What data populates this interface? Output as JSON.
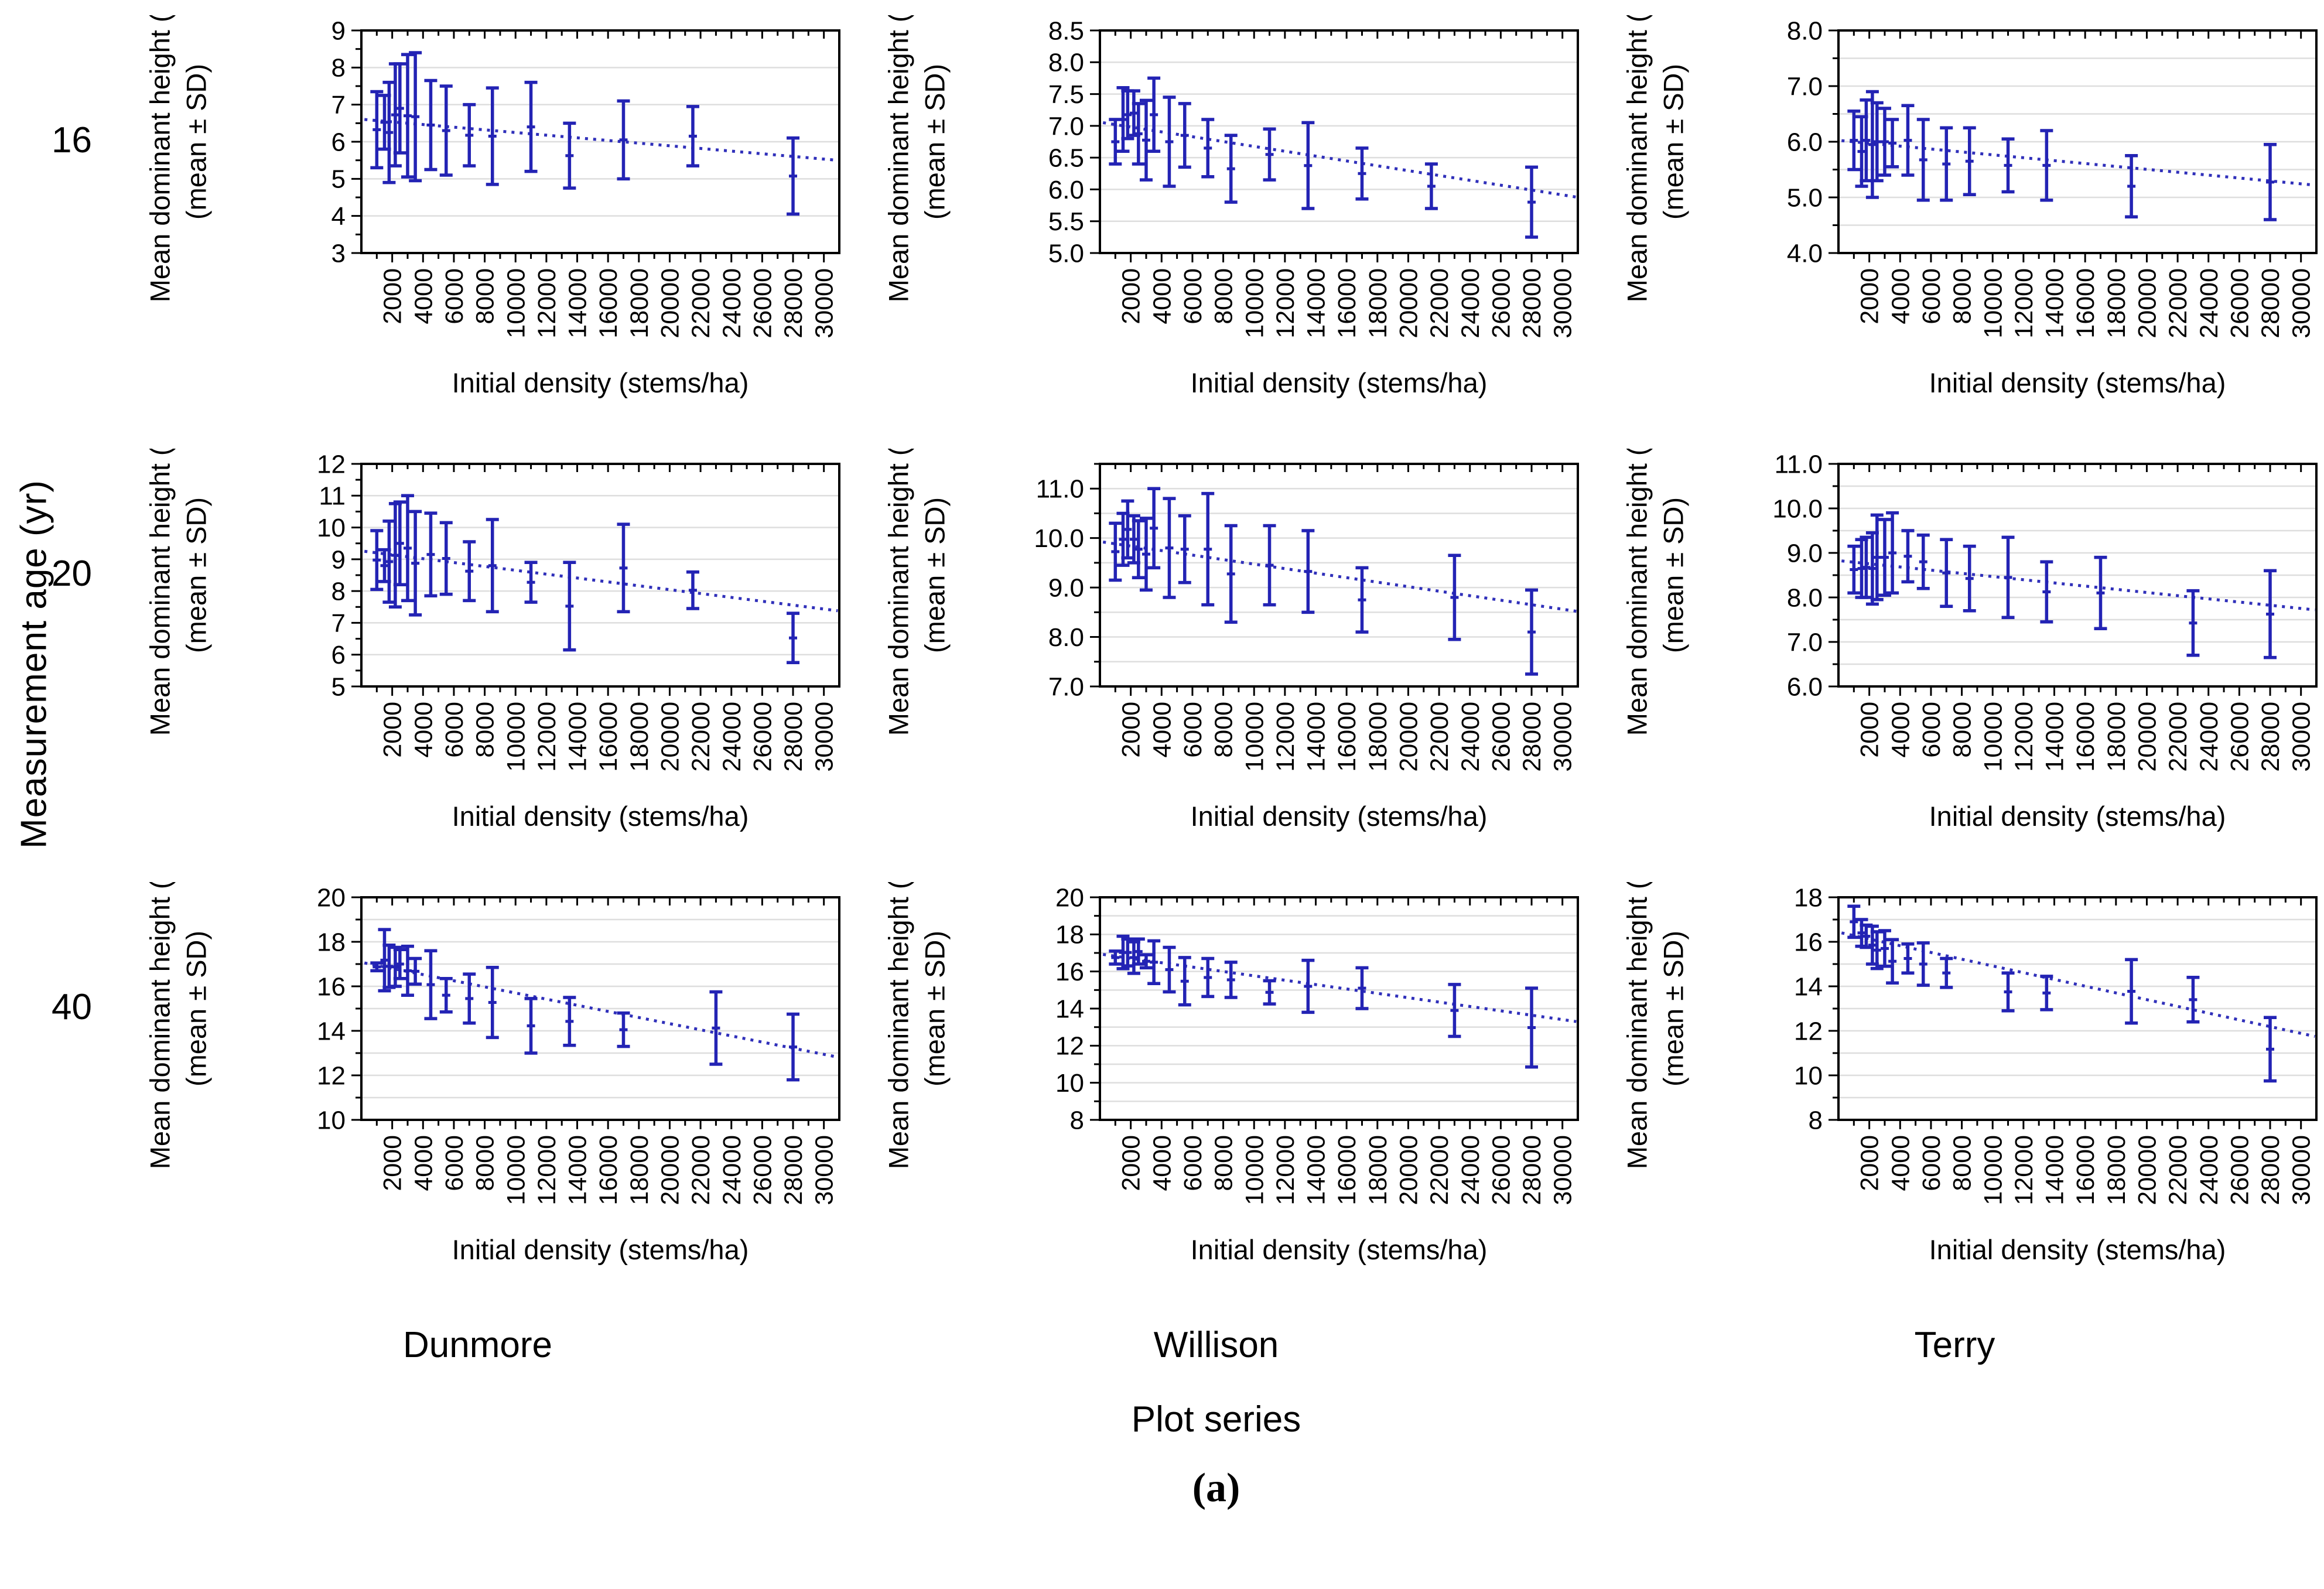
{
  "figure": {
    "row_axis_title": "Measurement age (yr)",
    "row_labels": [
      "16",
      "20",
      "40"
    ],
    "col_labels": [
      "Dunmore",
      "Willison",
      "Terry"
    ],
    "col_axis_title": "Plot series",
    "caption": "(a)",
    "x_axis_title": "Initial density (stems/ha)",
    "y_axis_title_line1": "Mean dominant height (m)",
    "y_axis_title_line2": "(mean ± SD)",
    "x_tick_labels": [
      2000,
      4000,
      6000,
      8000,
      10000,
      12000,
      14000,
      16000,
      18000,
      20000,
      22000,
      24000,
      26000,
      28000,
      30000
    ],
    "colors": {
      "bar": "#2323b4",
      "trend": "#3030ba",
      "grid": "#dedede",
      "axis": "#000000",
      "background": "#ffffff"
    }
  },
  "chart_data": [
    {
      "type": "errorbar",
      "site": "Dunmore",
      "age": 16,
      "xlabel": "Initial density (stems/ha)",
      "ylabel_line1": "Mean dominant height (m)",
      "ylabel_line2": "(mean ± SD)",
      "xlim": [
        0,
        31000
      ],
      "ylim": [
        3,
        9
      ],
      "yticks": [
        3,
        4,
        5,
        6,
        7,
        8,
        9
      ],
      "ytick_format": "0",
      "grid": [
        4,
        8,
        1
      ],
      "trend": {
        "x": [
          200,
          30900
        ],
        "y": [
          6.6,
          5.5
        ]
      },
      "points": [
        [
          1000,
          5.3,
          7.35
        ],
        [
          1500,
          5.8,
          7.25
        ],
        [
          1800,
          4.9,
          7.6
        ],
        [
          2200,
          5.35,
          8.1
        ],
        [
          2500,
          5.7,
          8.1
        ],
        [
          3000,
          5.05,
          8.35
        ],
        [
          3500,
          4.95,
          8.4
        ],
        [
          4500,
          5.25,
          7.65
        ],
        [
          5500,
          5.1,
          7.5
        ],
        [
          7000,
          5.35,
          7.0
        ],
        [
          8500,
          4.85,
          7.45
        ],
        [
          11000,
          5.2,
          7.6
        ],
        [
          13500,
          4.75,
          6.5
        ],
        [
          17000,
          5.0,
          7.1
        ],
        [
          21500,
          5.35,
          6.95
        ],
        [
          28000,
          4.05,
          6.1
        ]
      ]
    },
    {
      "type": "errorbar",
      "site": "Willison",
      "age": 16,
      "xlabel": "Initial density (stems/ha)",
      "ylabel_line1": "Mean dominant height (m)",
      "ylabel_line2": "(mean ± SD)",
      "xlim": [
        0,
        31000
      ],
      "ylim": [
        5.0,
        8.5
      ],
      "yticks": [
        5.0,
        5.5,
        6.0,
        6.5,
        7.0,
        7.5,
        8.0,
        8.5
      ],
      "ytick_format": "1",
      "grid": [
        5.5,
        8.0,
        0.5
      ],
      "trend": {
        "x": [
          200,
          30900
        ],
        "y": [
          7.05,
          5.88
        ]
      },
      "points": [
        [
          1000,
          6.4,
          7.1
        ],
        [
          1500,
          6.6,
          7.6
        ],
        [
          1800,
          6.8,
          7.55
        ],
        [
          2200,
          6.85,
          7.55
        ],
        [
          2500,
          6.4,
          7.35
        ],
        [
          3000,
          6.15,
          7.4
        ],
        [
          3500,
          6.6,
          7.75
        ],
        [
          4500,
          6.05,
          7.45
        ],
        [
          5500,
          6.35,
          7.35
        ],
        [
          7000,
          6.2,
          7.1
        ],
        [
          8500,
          5.8,
          6.85
        ],
        [
          11000,
          6.15,
          6.95
        ],
        [
          13500,
          5.7,
          7.05
        ],
        [
          17000,
          5.85,
          6.65
        ],
        [
          21500,
          5.7,
          6.4
        ],
        [
          28000,
          5.25,
          6.35
        ]
      ]
    },
    {
      "type": "errorbar",
      "site": "Terry",
      "age": 16,
      "xlabel": "Initial density (stems/ha)",
      "ylabel_line1": "Mean dominant height (m)",
      "ylabel_line2": "(mean ± SD)",
      "xlim": [
        0,
        31000
      ],
      "ylim": [
        4.0,
        8.0
      ],
      "yticks": [
        4.0,
        5.0,
        6.0,
        7.0,
        8.0
      ],
      "ytick_format": "1",
      "grid": [
        4.5,
        7.5,
        0.5
      ],
      "trend": {
        "x": [
          200,
          30900
        ],
        "y": [
          6.02,
          5.22
        ]
      },
      "points": [
        [
          1000,
          5.5,
          6.55
        ],
        [
          1500,
          5.2,
          6.45
        ],
        [
          1800,
          5.3,
          6.75
        ],
        [
          2200,
          5.0,
          6.9
        ],
        [
          2500,
          5.3,
          6.7
        ],
        [
          3000,
          5.4,
          6.6
        ],
        [
          3500,
          5.55,
          6.4
        ],
        [
          4500,
          5.4,
          6.65
        ],
        [
          5500,
          4.95,
          6.4
        ],
        [
          7000,
          4.95,
          6.25
        ],
        [
          8500,
          5.05,
          6.25
        ],
        [
          11000,
          5.1,
          6.05
        ],
        [
          13500,
          4.95,
          6.2
        ],
        [
          19000,
          4.65,
          5.75
        ],
        [
          28000,
          4.6,
          5.95
        ]
      ]
    },
    {
      "type": "errorbar",
      "site": "Dunmore",
      "age": 20,
      "xlabel": "Initial density (stems/ha)",
      "ylabel_line1": "Mean dominant height (m)",
      "ylabel_line2": "(mean ± SD)",
      "xlim": [
        0,
        31000
      ],
      "ylim": [
        5,
        12
      ],
      "yticks": [
        5,
        6,
        7,
        8,
        9,
        10,
        11,
        12
      ],
      "ytick_format": "0",
      "grid": [
        6,
        11,
        1
      ],
      "trend": {
        "x": [
          200,
          30900
        ],
        "y": [
          9.25,
          7.38
        ]
      },
      "points": [
        [
          1000,
          8.05,
          9.9
        ],
        [
          1500,
          8.3,
          9.3
        ],
        [
          1800,
          7.65,
          10.2
        ],
        [
          2200,
          7.5,
          10.75
        ],
        [
          2500,
          8.2,
          10.8
        ],
        [
          3000,
          7.7,
          11.0
        ],
        [
          3500,
          7.25,
          10.5
        ],
        [
          4500,
          7.85,
          10.45
        ],
        [
          5500,
          7.9,
          10.15
        ],
        [
          7000,
          7.7,
          9.55
        ],
        [
          8500,
          7.35,
          10.25
        ],
        [
          11000,
          7.65,
          8.9
        ],
        [
          13500,
          6.15,
          8.9
        ],
        [
          17000,
          7.35,
          10.1
        ],
        [
          21500,
          7.45,
          8.6
        ],
        [
          28000,
          5.75,
          7.3
        ]
      ]
    },
    {
      "type": "errorbar",
      "site": "Willison",
      "age": 20,
      "xlabel": "Initial density (stems/ha)",
      "ylabel_line1": "Mean dominant height (m)",
      "ylabel_line2": "(mean ± SD)",
      "xlim": [
        0,
        31000
      ],
      "ylim": [
        7.0,
        11.5
      ],
      "yticks": [
        7.0,
        8.0,
        9.0,
        10.0,
        11.0
      ],
      "ytick_format": "1",
      "grid": [
        7.5,
        11.0,
        0.5
      ],
      "trend": {
        "x": [
          200,
          30900
        ],
        "y": [
          9.92,
          8.52
        ]
      },
      "points": [
        [
          1000,
          9.15,
          10.3
        ],
        [
          1500,
          9.45,
          10.5
        ],
        [
          1800,
          9.6,
          10.75
        ],
        [
          2200,
          9.5,
          10.45
        ],
        [
          2500,
          9.2,
          10.35
        ],
        [
          3000,
          8.95,
          10.4
        ],
        [
          3500,
          9.4,
          11.0
        ],
        [
          4500,
          8.8,
          10.8
        ],
        [
          5500,
          9.1,
          10.45
        ],
        [
          7000,
          8.65,
          10.9
        ],
        [
          8500,
          8.3,
          10.25
        ],
        [
          11000,
          8.65,
          10.25
        ],
        [
          13500,
          8.5,
          10.15
        ],
        [
          17000,
          8.1,
          9.4
        ],
        [
          23000,
          7.95,
          9.65
        ],
        [
          28000,
          7.25,
          8.95
        ]
      ]
    },
    {
      "type": "errorbar",
      "site": "Terry",
      "age": 20,
      "xlabel": "Initial density (stems/ha)",
      "ylabel_line1": "Mean dominant height (m)",
      "ylabel_line2": "(mean ± SD)",
      "xlim": [
        0,
        31000
      ],
      "ylim": [
        6.0,
        11.0
      ],
      "yticks": [
        6.0,
        7.0,
        8.0,
        9.0,
        10.0,
        11.0
      ],
      "ytick_format": "1",
      "grid": [
        6.5,
        10.5,
        0.5
      ],
      "trend": {
        "x": [
          200,
          30900
        ],
        "y": [
          8.82,
          7.72
        ]
      },
      "points": [
        [
          1000,
          8.1,
          9.15
        ],
        [
          1500,
          8.0,
          9.3
        ],
        [
          1800,
          8.0,
          9.35
        ],
        [
          2200,
          7.85,
          9.45
        ],
        [
          2500,
          7.95,
          9.85
        ],
        [
          3000,
          8.05,
          9.75
        ],
        [
          3500,
          8.1,
          9.9
        ],
        [
          4500,
          8.35,
          9.5
        ],
        [
          5500,
          8.2,
          9.4
        ],
        [
          7000,
          7.8,
          9.3
        ],
        [
          8500,
          7.7,
          9.15
        ],
        [
          11000,
          7.55,
          9.35
        ],
        [
          13500,
          7.45,
          8.8
        ],
        [
          17000,
          7.3,
          8.9
        ],
        [
          23000,
          6.7,
          8.15
        ],
        [
          28000,
          6.65,
          8.6
        ]
      ]
    },
    {
      "type": "errorbar",
      "site": "Dunmore",
      "age": 40,
      "xlabel": "Initial density (stems/ha)",
      "ylabel_line1": "Mean dominant height (m)",
      "ylabel_line2": "(mean ± SD)",
      "xlim": [
        0,
        31000
      ],
      "ylim": [
        10,
        20
      ],
      "yticks": [
        10,
        12,
        14,
        16,
        18,
        20
      ],
      "ytick_format": "0",
      "grid": [
        11,
        19,
        1
      ],
      "trend": {
        "x": [
          200,
          30900
        ],
        "y": [
          17.05,
          12.82
        ]
      },
      "points": [
        [
          1000,
          16.7,
          17.05
        ],
        [
          1500,
          15.8,
          18.55
        ],
        [
          1800,
          15.95,
          17.85
        ],
        [
          2200,
          16.0,
          17.75
        ],
        [
          2500,
          16.35,
          17.65
        ],
        [
          3000,
          15.6,
          17.8
        ],
        [
          3500,
          16.1,
          17.25
        ],
        [
          4500,
          14.55,
          17.6
        ],
        [
          5500,
          14.85,
          16.35
        ],
        [
          7000,
          14.35,
          16.55
        ],
        [
          8500,
          13.7,
          16.85
        ],
        [
          11000,
          13.0,
          15.45
        ],
        [
          13500,
          13.35,
          15.5
        ],
        [
          17000,
          13.3,
          14.8
        ],
        [
          23000,
          12.5,
          15.75
        ],
        [
          28000,
          11.8,
          14.75
        ]
      ]
    },
    {
      "type": "errorbar",
      "site": "Willison",
      "age": 40,
      "xlabel": "Initial density (stems/ha)",
      "ylabel_line1": "Mean dominant height (m)",
      "ylabel_line2": "(mean ± SD)",
      "xlim": [
        0,
        31000
      ],
      "ylim": [
        8,
        20
      ],
      "yticks": [
        8,
        10,
        12,
        14,
        16,
        18,
        20
      ],
      "ytick_format": "0",
      "grid": [
        9,
        19,
        1
      ],
      "trend": {
        "x": [
          200,
          30900
        ],
        "y": [
          16.92,
          13.3
        ]
      },
      "points": [
        [
          1000,
          16.4,
          17.1
        ],
        [
          1500,
          16.15,
          17.9
        ],
        [
          1800,
          16.3,
          17.75
        ],
        [
          2200,
          15.9,
          17.6
        ],
        [
          2500,
          16.4,
          17.75
        ],
        [
          3000,
          16.2,
          16.9
        ],
        [
          3500,
          15.35,
          17.65
        ],
        [
          4500,
          14.9,
          17.3
        ],
        [
          5500,
          14.2,
          16.75
        ],
        [
          7000,
          14.65,
          16.7
        ],
        [
          8500,
          14.6,
          16.5
        ],
        [
          11000,
          14.25,
          15.5
        ],
        [
          13500,
          13.8,
          16.6
        ],
        [
          17000,
          14.0,
          16.2
        ],
        [
          23000,
          12.5,
          15.3
        ],
        [
          28000,
          10.85,
          15.1
        ]
      ]
    },
    {
      "type": "errorbar",
      "site": "Terry",
      "age": 40,
      "xlabel": "Initial density (stems/ha)",
      "ylabel_line1": "Mean dominant height (m)",
      "ylabel_line2": "(mean ± SD)",
      "xlim": [
        0,
        31000
      ],
      "ylim": [
        8,
        18
      ],
      "yticks": [
        8,
        10,
        12,
        14,
        16,
        18
      ],
      "ytick_format": "0",
      "grid": [
        9,
        17,
        1
      ],
      "trend": {
        "x": [
          200,
          30900
        ],
        "y": [
          16.4,
          11.75
        ]
      },
      "points": [
        [
          1000,
          16.2,
          17.6
        ],
        [
          1500,
          15.8,
          17.0
        ],
        [
          1800,
          15.75,
          16.75
        ],
        [
          2200,
          15.0,
          16.7
        ],
        [
          2500,
          14.8,
          16.45
        ],
        [
          3000,
          14.9,
          16.5
        ],
        [
          3500,
          14.15,
          16.1
        ],
        [
          4500,
          14.6,
          15.9
        ],
        [
          5500,
          14.05,
          15.95
        ],
        [
          7000,
          13.95,
          15.25
        ],
        [
          11000,
          12.9,
          14.6
        ],
        [
          13500,
          12.95,
          14.45
        ],
        [
          19000,
          12.35,
          15.2
        ],
        [
          23000,
          12.4,
          14.4
        ],
        [
          28000,
          9.75,
          12.6
        ]
      ]
    }
  ]
}
